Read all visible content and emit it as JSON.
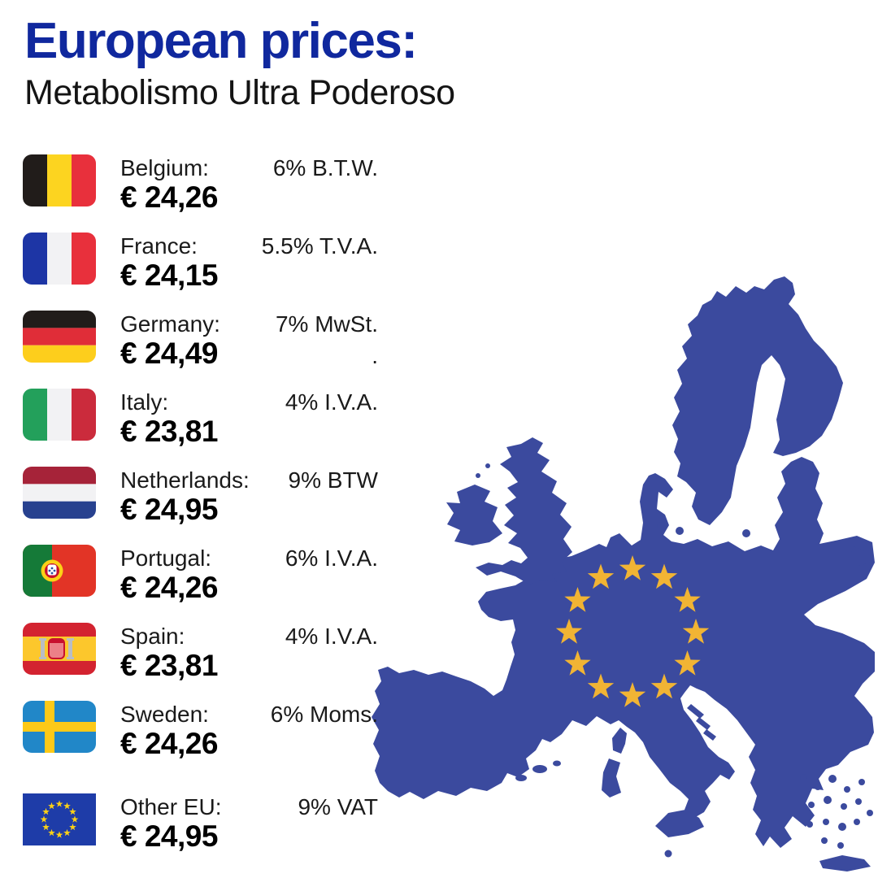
{
  "page": {
    "background": "#ffffff"
  },
  "header": {
    "title": "European prices:",
    "subtitle": "Metabolismo Ultra Poderoso",
    "title_color": "#10289e",
    "subtitle_color": "#141414"
  },
  "price_list": {
    "items": [
      {
        "flag": "belgium",
        "country": "Belgium:",
        "vat": "6% B.T.W.",
        "vat_line2": "",
        "price": "€ 24,26"
      },
      {
        "flag": "france",
        "country": "France:",
        "vat": "5.5% T.V.A.",
        "vat_line2": "",
        "price": "€ 24,15"
      },
      {
        "flag": "germany",
        "country": "Germany:",
        "vat": "7% MwSt.",
        "vat_line2": ".",
        "price": "€ 24,49"
      },
      {
        "flag": "italy",
        "country": "Italy:",
        "vat": "4% I.V.A.",
        "vat_line2": "",
        "price": "€ 23,81"
      },
      {
        "flag": "netherlands",
        "country": "Netherlands:",
        "vat": "9% BTW",
        "vat_line2": "",
        "price": "€ 24,95"
      },
      {
        "flag": "portugal",
        "country": "Portugal:",
        "vat": "6% I.V.A.",
        "vat_line2": "",
        "price": "€ 24,26"
      },
      {
        "flag": "spain",
        "country": "Spain:",
        "vat": "4% I.V.A.",
        "vat_line2": "",
        "price": "€ 23,81"
      },
      {
        "flag": "sweden",
        "country": "Sweden:",
        "vat": "6% Moms.",
        "vat_line2": "",
        "price": "€ 24,26"
      },
      {
        "flag": "eu",
        "country": "Other EU:",
        "vat": "9% VAT",
        "vat_line2": "",
        "price": "€ 24,95"
      }
    ]
  },
  "flags": {
    "belgium": {
      "type": "vertical",
      "colors": [
        "#211c1a",
        "#fcd420",
        "#e8303c"
      ],
      "rounded": true
    },
    "france": {
      "type": "vertical",
      "colors": [
        "#1d35a5",
        "#f2f2f4",
        "#e8303c"
      ],
      "rounded": true
    },
    "germany": {
      "type": "horizontal",
      "colors": [
        "#211c1a",
        "#e02d38",
        "#fdce1c"
      ],
      "rounded": true
    },
    "italy": {
      "type": "vertical",
      "colors": [
        "#23a05b",
        "#f2f2f4",
        "#cb2b3c"
      ],
      "rounded": true
    },
    "netherlands": {
      "type": "horizontal",
      "colors": [
        "#a62339",
        "#f2f2f4",
        "#27418f"
      ],
      "rounded": true
    },
    "portugal": {
      "type": "portugal",
      "colors": [
        "#157a38",
        "#e23426"
      ],
      "emblem": [
        "#fcd116",
        "#ffffff",
        "#c8102e",
        "#2b52a0"
      ],
      "rounded": true
    },
    "spain": {
      "type": "spain",
      "colors": [
        "#d32330",
        "#fcc72c"
      ],
      "emblem": [
        "#b9bdc4",
        "#ec8088",
        "#c8102e"
      ],
      "rounded": true
    },
    "sweden": {
      "type": "nordic-cross",
      "colors": [
        "#2187c8",
        "#fdc918"
      ],
      "rounded": true
    },
    "eu": {
      "type": "eu-stars",
      "colors": [
        "#1e3ca8",
        "#fcd116"
      ],
      "rounded": false
    }
  },
  "map": {
    "name": "European Union map silhouette with circle of stars",
    "land_color": "#3b4a9e",
    "star_color": "#f1b434",
    "star_count": 12
  }
}
